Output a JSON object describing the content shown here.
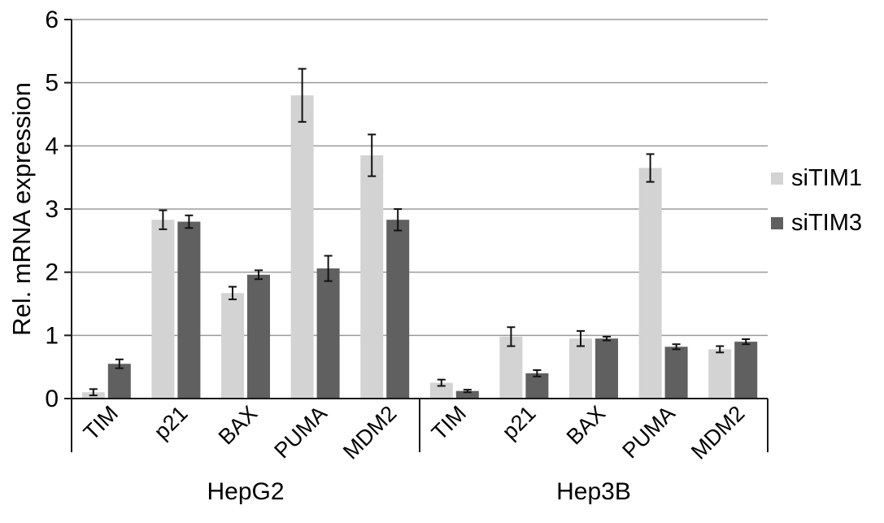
{
  "chart_data": {
    "type": "bar",
    "title": "",
    "ylabel": "Rel. mRNA expression",
    "xlabel": "",
    "ylim": [
      0,
      6
    ],
    "ytick_interval": 1,
    "grid": true,
    "legend_position": "right",
    "groups": [
      {
        "label": "HepG2",
        "categories": [
          "TIM",
          "p21",
          "BAX",
          "PUMA",
          "MDM2"
        ]
      },
      {
        "label": "Hep3B",
        "categories": [
          "TIM",
          "p21",
          "BAX",
          "PUMA",
          "MDM2"
        ]
      }
    ],
    "series": [
      {
        "name": "siTIM1",
        "color": "#d3d3d3",
        "values": [
          [
            0.1,
            2.83,
            1.67,
            4.8,
            3.85
          ],
          [
            0.25,
            0.98,
            0.95,
            3.65,
            0.78
          ]
        ],
        "errors": [
          [
            0.05,
            0.15,
            0.1,
            0.42,
            0.33
          ],
          [
            0.05,
            0.15,
            0.12,
            0.22,
            0.05
          ]
        ]
      },
      {
        "name": "siTIM3",
        "color": "#606060",
        "values": [
          [
            0.55,
            2.8,
            1.96,
            2.06,
            2.83
          ],
          [
            0.12,
            0.4,
            0.95,
            0.82,
            0.9
          ]
        ],
        "errors": [
          [
            0.07,
            0.1,
            0.07,
            0.2,
            0.17
          ],
          [
            0.02,
            0.05,
            0.03,
            0.04,
            0.04
          ]
        ]
      }
    ],
    "colors": {
      "axis": "#1a1a1a",
      "grid": "#9b9b9b",
      "error": "#111111",
      "text": "#000000"
    }
  }
}
